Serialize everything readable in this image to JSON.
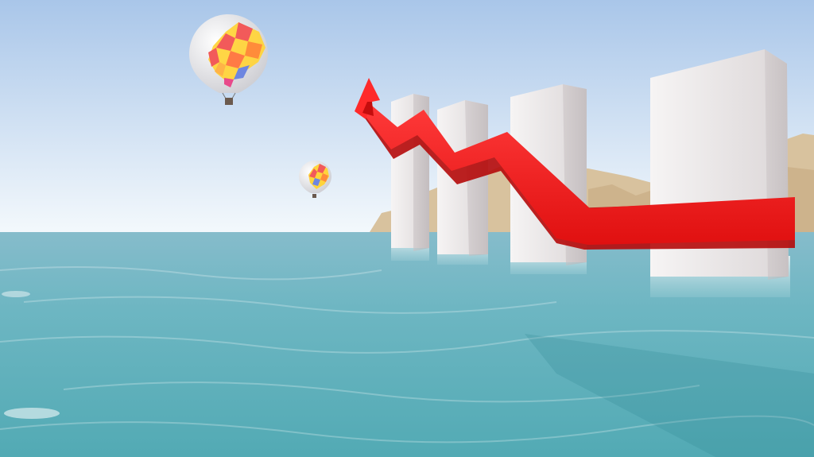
{
  "scene": {
    "description_label": "",
    "colors": {
      "sky_top": "#a9c6e9",
      "sky_bottom": "#eef6fb",
      "sea_far": "#7fb9c8",
      "sea_near": "#5fb0bb",
      "pillar_light": "#f2f0f0",
      "pillar_shade": "#cfc9cb",
      "arrow_red": "#ff1a1a",
      "arrow_dark": "#c90d0d",
      "dunes": "#d9c3a0"
    },
    "elements": {
      "balloon_count": 2,
      "pillar_count": 4,
      "arrow_direction": "up-left"
    }
  }
}
